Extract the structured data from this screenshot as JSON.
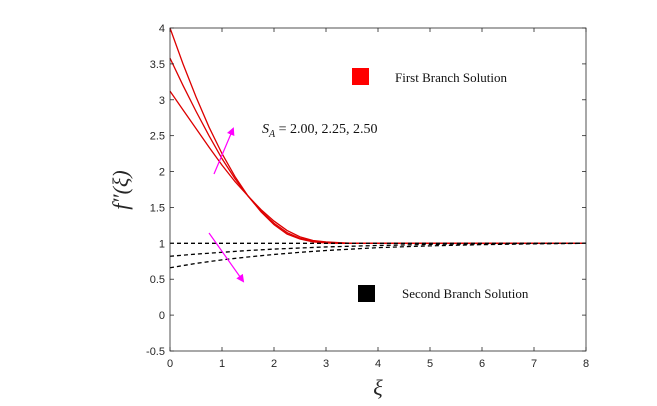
{
  "chart_data": {
    "type": "line",
    "xlabel": "ξ",
    "ylabel": "f″(ξ)",
    "xlim": [
      0,
      8
    ],
    "ylim": [
      -0.5,
      4
    ],
    "xticks": [
      0,
      1,
      2,
      3,
      4,
      5,
      6,
      7,
      8
    ],
    "xtick_labels": [
      "0",
      "1",
      "2",
      "3",
      "4",
      "5",
      "6",
      "7",
      "8"
    ],
    "yticks": [
      -0.5,
      0,
      0.5,
      1,
      1.5,
      2,
      2.5,
      3,
      3.5,
      4
    ],
    "ytick_labels": [
      "-0.5",
      "0",
      "0.5",
      "1",
      "1.5",
      "2",
      "2.5",
      "3",
      "3.5",
      "4"
    ],
    "grid": false,
    "legend": [
      {
        "label": "First Branch Solution",
        "color": "#ff0000"
      },
      {
        "label": "Second Branch Solution",
        "color": "#000000"
      }
    ],
    "annotation": {
      "text": "S_A = 2.00, 2.25, 2.50",
      "prefix": "S",
      "subscript": "A",
      "suffix": " = 2.00, 2.25, 2.50"
    },
    "arrow_color": "#ff00ff",
    "series": [
      {
        "branch": "first",
        "color": "#dd0000",
        "style": "solid",
        "x": [
          0,
          0.25,
          0.5,
          0.75,
          1.0,
          1.25,
          1.5,
          1.75,
          2.0,
          2.25,
          2.5,
          2.75,
          3.0,
          3.25,
          3.5,
          4,
          5,
          6,
          7,
          8
        ],
        "y": [
          3.12,
          2.86,
          2.6,
          2.34,
          2.09,
          1.86,
          1.66,
          1.47,
          1.31,
          1.18,
          1.09,
          1.04,
          1.02,
          1.01,
          1.0,
          1.0,
          1.0,
          1.0,
          1.0,
          1.0
        ]
      },
      {
        "branch": "first",
        "color": "#dd0000",
        "style": "solid",
        "x": [
          0,
          0.25,
          0.5,
          0.75,
          1.0,
          1.25,
          1.5,
          1.75,
          2.0,
          2.25,
          2.5,
          2.75,
          3.0,
          3.25,
          3.5,
          4,
          5,
          6,
          7,
          8
        ],
        "y": [
          3.58,
          3.2,
          2.84,
          2.5,
          2.18,
          1.9,
          1.66,
          1.45,
          1.28,
          1.15,
          1.07,
          1.03,
          1.01,
          1.005,
          1.0,
          1.0,
          1.0,
          1.0,
          1.0,
          1.0
        ]
      },
      {
        "branch": "first",
        "color": "#dd0000",
        "style": "solid",
        "x": [
          0,
          0.25,
          0.5,
          0.75,
          1.0,
          1.25,
          1.5,
          1.75,
          2.0,
          2.25,
          2.5,
          2.75,
          3.0,
          3.25,
          3.5,
          4,
          5,
          6,
          7,
          8
        ],
        "y": [
          4.0,
          3.5,
          3.04,
          2.62,
          2.25,
          1.93,
          1.66,
          1.44,
          1.26,
          1.13,
          1.06,
          1.02,
          1.005,
          1.0,
          1.0,
          1.0,
          1.0,
          1.0,
          1.0,
          1.0
        ]
      },
      {
        "branch": "second",
        "color": "#000000",
        "style": "dashed",
        "x": [
          0,
          0.5,
          1,
          1.5,
          2,
          2.5,
          3,
          3.5,
          4,
          5,
          6,
          7,
          8
        ],
        "y": [
          1.0,
          1.0,
          1.0,
          1.0,
          1.0,
          1.0,
          1.0,
          1.0,
          1.0,
          1.0,
          1.0,
          1.0,
          1.0
        ]
      },
      {
        "branch": "second",
        "color": "#000000",
        "style": "dashed",
        "x": [
          0,
          0.5,
          1,
          1.5,
          2,
          2.5,
          3,
          3.5,
          4,
          5,
          6,
          7,
          8
        ],
        "y": [
          0.82,
          0.85,
          0.875,
          0.9,
          0.92,
          0.935,
          0.95,
          0.96,
          0.97,
          0.985,
          0.993,
          0.998,
          1.0
        ]
      },
      {
        "branch": "second",
        "color": "#000000",
        "style": "dashed",
        "x": [
          0,
          0.5,
          1,
          1.5,
          2,
          2.5,
          3,
          3.5,
          4,
          5,
          6,
          7,
          8
        ],
        "y": [
          0.66,
          0.72,
          0.77,
          0.81,
          0.845,
          0.875,
          0.9,
          0.92,
          0.94,
          0.965,
          0.982,
          0.993,
          1.0
        ]
      }
    ]
  }
}
